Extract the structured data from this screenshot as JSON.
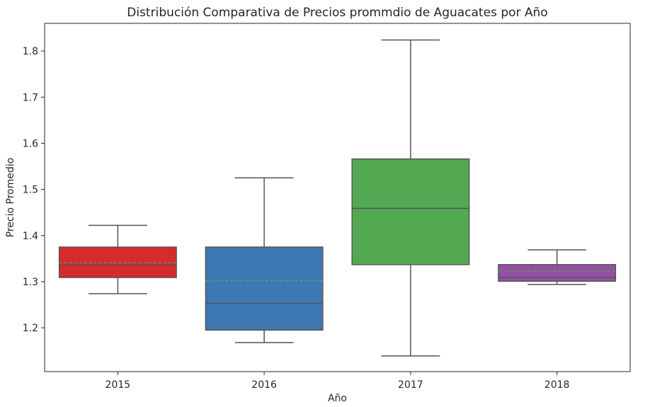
{
  "chart_data": {
    "type": "box",
    "title": "Distribución Comparativa de Precios prommdio de Aguacates por Año",
    "xlabel": "Año",
    "ylabel": "Precio Promedio",
    "ylim": [
      1.105,
      1.86
    ],
    "yticks": [
      1.2,
      1.3,
      1.4,
      1.5,
      1.6,
      1.7,
      1.8
    ],
    "ytick_labels": [
      "1.2",
      "1.3",
      "1.4",
      "1.5",
      "1.6",
      "1.7",
      "1.8"
    ],
    "categories": [
      "2015",
      "2016",
      "2017",
      "2018"
    ],
    "boxes": [
      {
        "category": "2015",
        "whisker_low": 1.274,
        "q1": 1.309,
        "median": 1.336,
        "q3": 1.375,
        "whisker_high": 1.422,
        "mean": 1.341,
        "color": "#d62b2e"
      },
      {
        "category": "2016",
        "whisker_low": 1.168,
        "q1": 1.195,
        "median": 1.253,
        "q3": 1.375,
        "whisker_high": 1.525,
        "mean": 1.302,
        "color": "#3d78b3"
      },
      {
        "category": "2017",
        "whisker_low": 1.139,
        "q1": 1.337,
        "median": 1.459,
        "q3": 1.566,
        "whisker_high": 1.824,
        "mean": 1.469,
        "color": "#53a852"
      },
      {
        "category": "2018",
        "whisker_low": 1.294,
        "q1": 1.301,
        "median": 1.309,
        "q3": 1.337,
        "whisker_high": 1.369,
        "mean": 1.323,
        "color": "#9450a3"
      }
    ],
    "mean_line_color": "#4caf50",
    "grid": false,
    "legend": "none"
  }
}
